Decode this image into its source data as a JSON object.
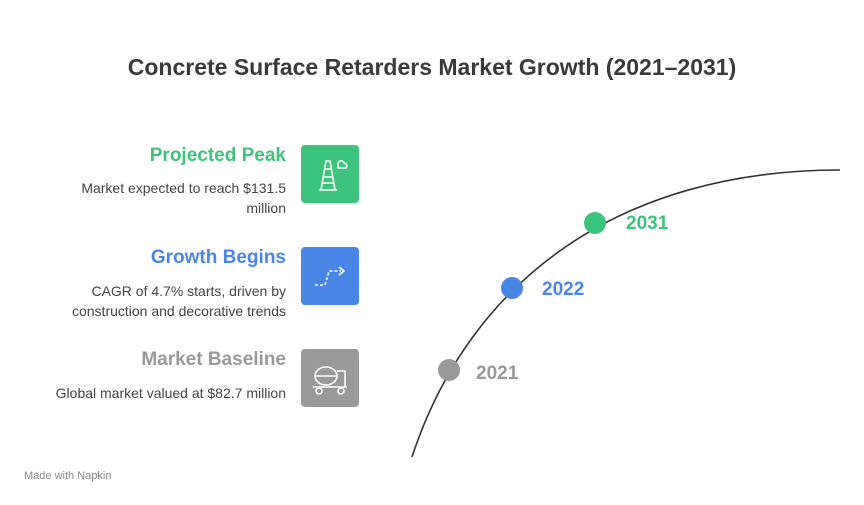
{
  "title": "Concrete Surface Retarders Market Growth (2021–2031)",
  "items": [
    {
      "heading": "Projected Peak",
      "description": "Market expected to reach $131.5 million",
      "year": "2031"
    },
    {
      "heading": "Growth Begins",
      "description": "CAGR of 4.7% starts, driven by construction and decorative trends",
      "year": "2022"
    },
    {
      "heading": "Market Baseline",
      "description": "Global market valued at $82.7 million",
      "year": "2021"
    }
  ],
  "footer": "Made with Napkin"
}
